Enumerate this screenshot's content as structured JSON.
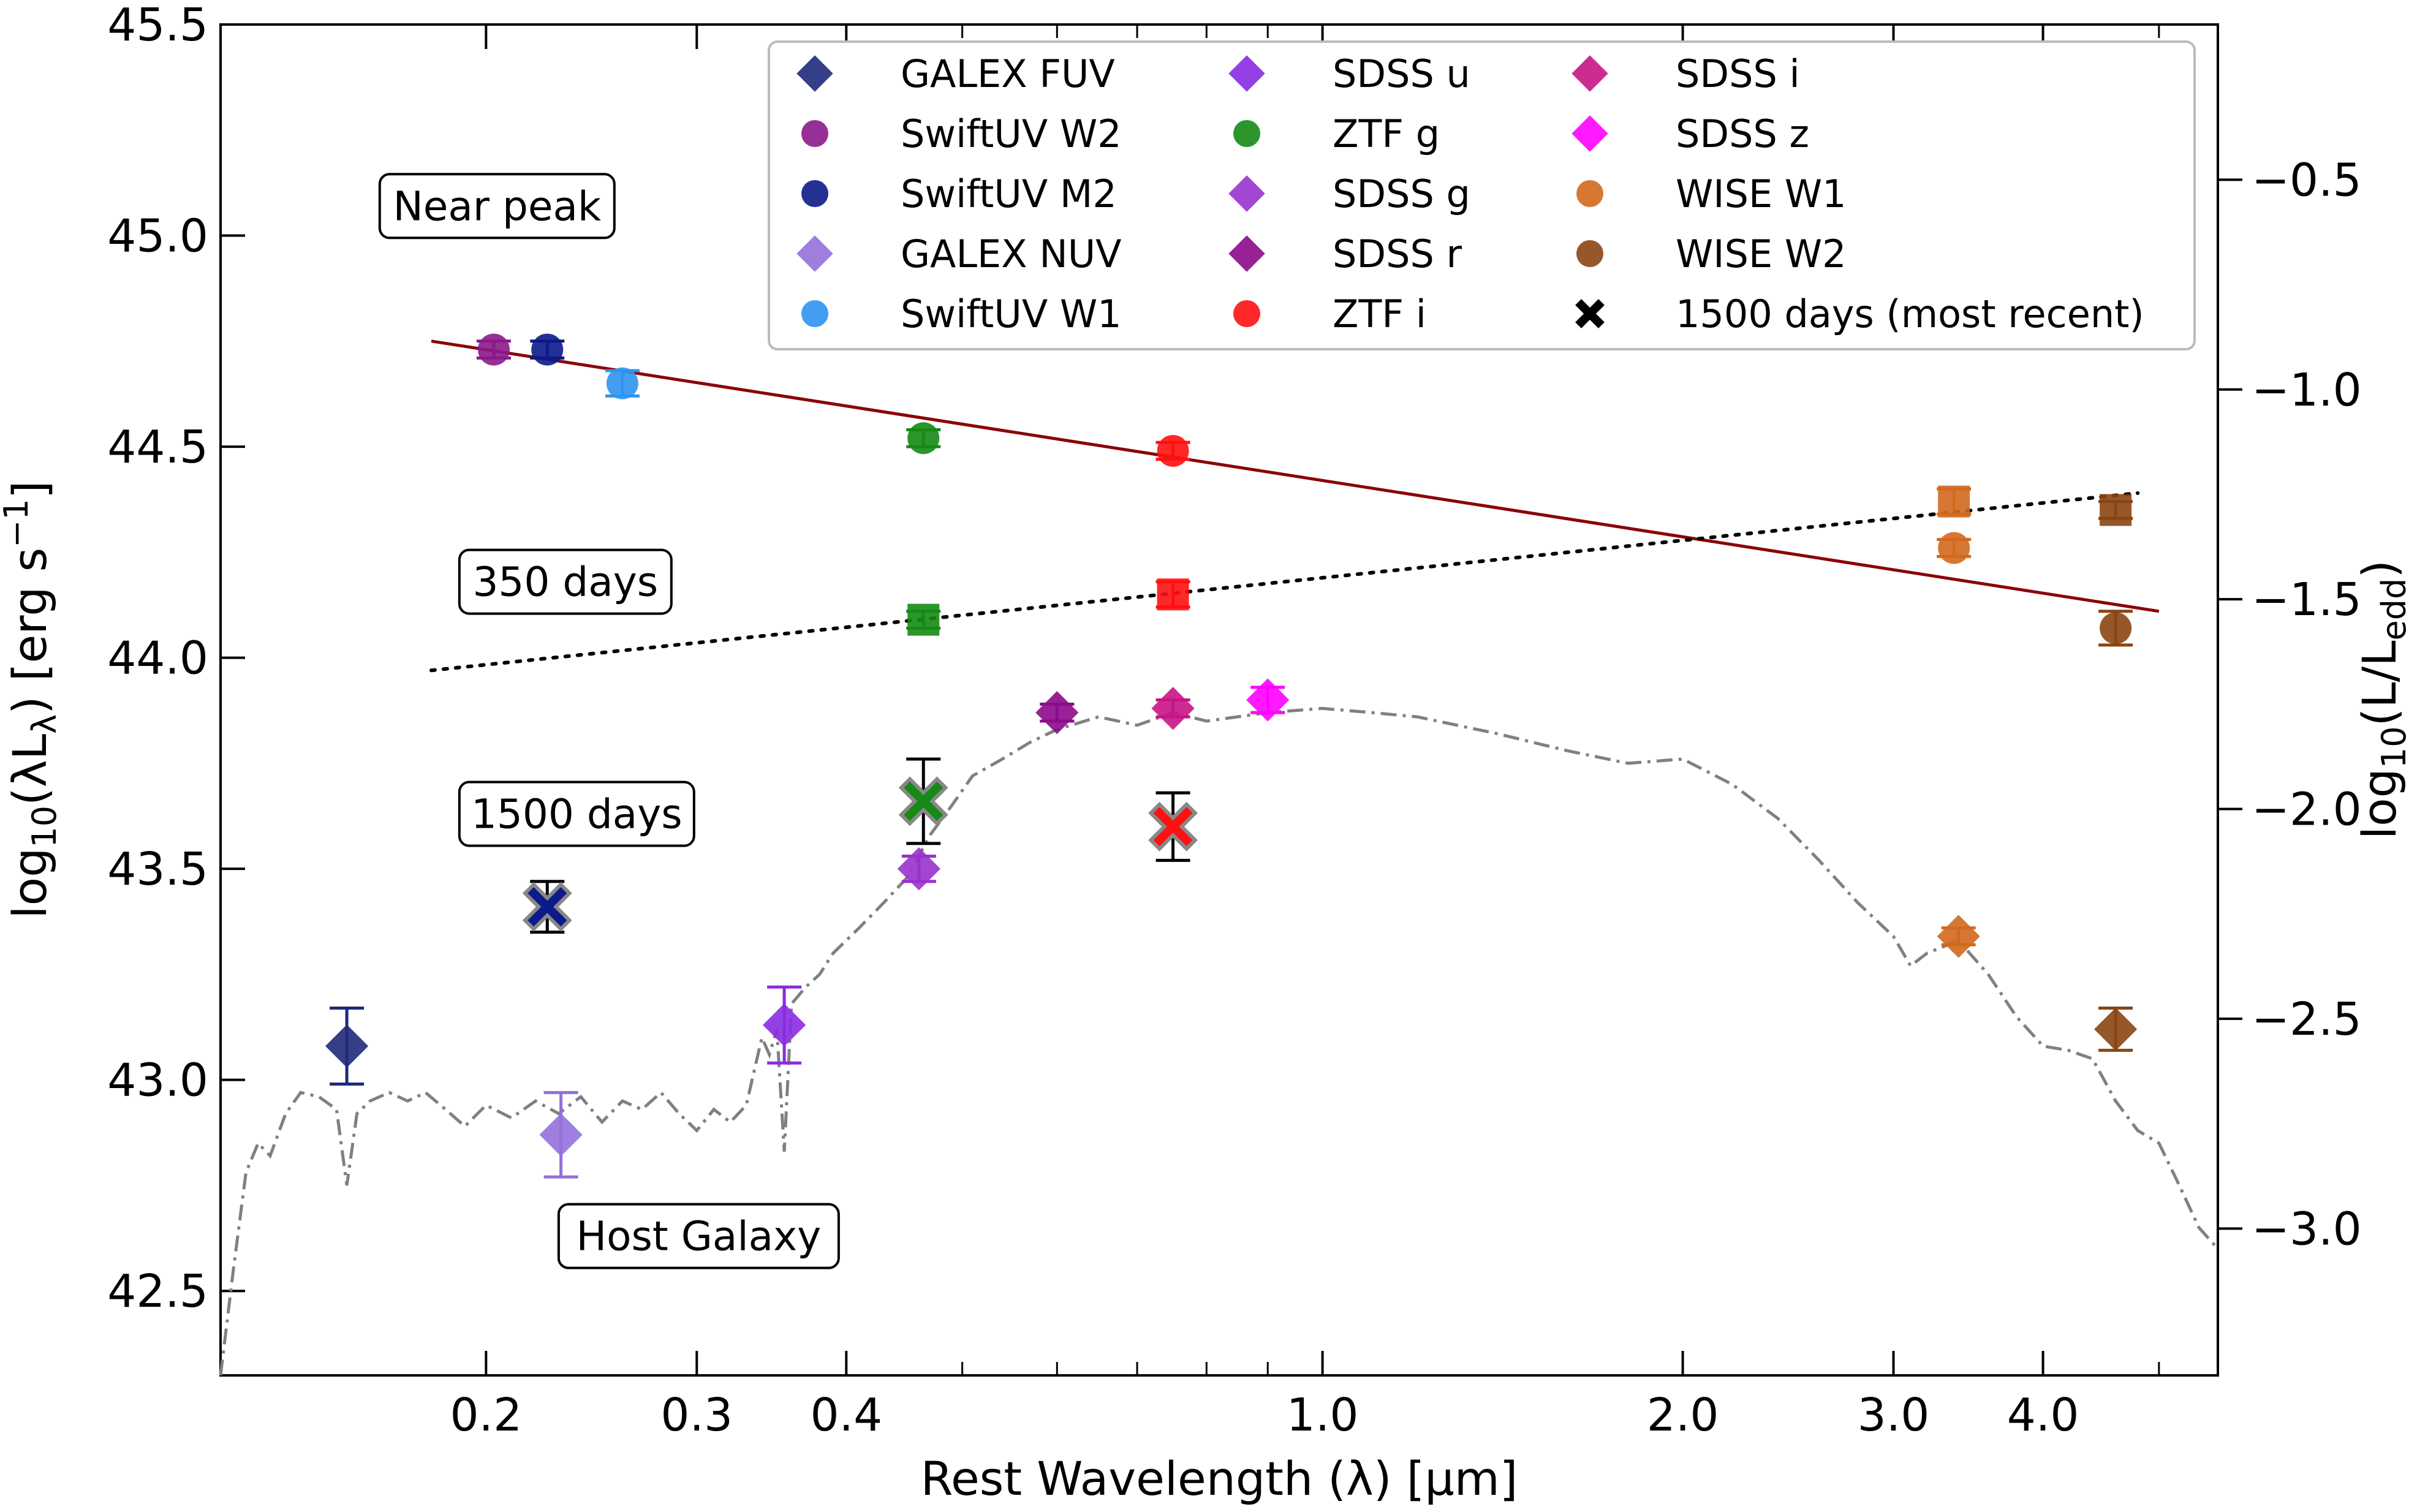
{
  "chart_data": {
    "type": "scatter",
    "xscale": "log",
    "xlabel": "Rest Wavelength (λ) [μm]",
    "ylabel": "log10(λLλ) [erg s^-1]",
    "ylabel_parts": {
      "pre": "log",
      "sub": "10",
      "mid": "(λL",
      "sub2": "λ",
      "post": ") [erg s",
      "sup": "−1",
      "end": "]"
    },
    "y2label_parts": {
      "pre": "log",
      "sub": "10",
      "mid": "(L/L",
      "sub2": "edd",
      "end": ")"
    },
    "xlim": [
      0.12,
      5.6
    ],
    "ylim": [
      42.3,
      45.5
    ],
    "y2lim": [
      -3.35,
      -0.13
    ],
    "x_ticks": [
      {
        "v": 0.2,
        "label": "0.2"
      },
      {
        "v": 0.3,
        "label": "0.3"
      },
      {
        "v": 0.4,
        "label": "0.4"
      },
      {
        "v": 1.0,
        "label": "1.0"
      },
      {
        "v": 2.0,
        "label": "2.0"
      },
      {
        "v": 3.0,
        "label": "3.0"
      },
      {
        "v": 4.0,
        "label": "4.0"
      }
    ],
    "x_minor_ticks": [
      0.5,
      0.6,
      0.7,
      0.8,
      0.9,
      5.0
    ],
    "y_ticks": [
      {
        "v": 42.5,
        "label": "42.5"
      },
      {
        "v": 43.0,
        "label": "43.0"
      },
      {
        "v": 43.5,
        "label": "43.5"
      },
      {
        "v": 44.0,
        "label": "44.0"
      },
      {
        "v": 44.5,
        "label": "44.5"
      },
      {
        "v": 45.0,
        "label": "45.0"
      },
      {
        "v": 45.5,
        "label": "45.5"
      }
    ],
    "y2_ticks": [
      {
        "v": -3.0,
        "label": "−3.0"
      },
      {
        "v": -2.5,
        "label": "−2.5"
      },
      {
        "v": -2.0,
        "label": "−2.0"
      },
      {
        "v": -1.5,
        "label": "−1.5"
      },
      {
        "v": -1.0,
        "label": "−1.0"
      },
      {
        "v": -0.5,
        "label": "−0.5"
      }
    ],
    "colors": {
      "GALEX FUV": "#1f2a7a",
      "SwiftUV W2": "#8b1a8b",
      "SwiftUV M2": "#0d1a8a",
      "GALEX NUV": "#9370db",
      "SwiftUV W1": "#2f94f0",
      "SDSS u": "#8a2be2",
      "ZTF g": "#158a15",
      "SDSS g": "#9932cc",
      "SDSS r": "#8b0a8b",
      "ZTF i": "#ff1111",
      "SDSS i": "#c71585",
      "SDSS z": "#ff00ff",
      "WISE W1": "#d2691e",
      "WISE W2": "#8b4513"
    },
    "legend": {
      "location": "top-right",
      "entries": [
        {
          "label": "GALEX FUV",
          "marker": "diamond",
          "color": "#1f2a7a"
        },
        {
          "label": "SwiftUV W2",
          "marker": "circle",
          "color": "#8b1a8b"
        },
        {
          "label": "SwiftUV M2",
          "marker": "circle",
          "color": "#0d1a8a"
        },
        {
          "label": "GALEX NUV",
          "marker": "diamond",
          "color": "#9370db"
        },
        {
          "label": "SwiftUV W1",
          "marker": "circle",
          "color": "#2f94f0"
        },
        {
          "label": "SDSS u",
          "marker": "diamond",
          "color": "#8a2be2"
        },
        {
          "label": "ZTF g",
          "marker": "circle",
          "color": "#158a15"
        },
        {
          "label": "SDSS g",
          "marker": "diamond",
          "color": "#9932cc"
        },
        {
          "label": "SDSS r",
          "marker": "diamond",
          "color": "#8b0a8b"
        },
        {
          "label": "ZTF i",
          "marker": "circle",
          "color": "#ff1111"
        },
        {
          "label": "SDSS i",
          "marker": "diamond",
          "color": "#c71585"
        },
        {
          "label": "SDSS z",
          "marker": "diamond",
          "color": "#ff00ff"
        },
        {
          "label": "WISE W1",
          "marker": "circle",
          "color": "#d2691e"
        },
        {
          "label": "WISE W2",
          "marker": "circle",
          "color": "#8b4513"
        },
        {
          "label": "1500 days (most recent)",
          "marker": "x",
          "color": "#000000"
        }
      ]
    },
    "annotations": [
      {
        "id": "near-peak",
        "text": "Near peak",
        "x": 0.163,
        "y": 45.07
      },
      {
        "id": "350-days",
        "text": "350 days",
        "x": 0.19,
        "y": 44.18
      },
      {
        "id": "1500-days",
        "text": "1500 days",
        "x": 0.19,
        "y": 43.63
      },
      {
        "id": "host-galaxy",
        "text": "Host Galaxy",
        "x": 0.23,
        "y": 42.63
      }
    ],
    "series": [
      {
        "name": "Near peak",
        "points": [
          {
            "band": "SwiftUV W2",
            "marker": "circle",
            "x": 0.203,
            "y": 44.73,
            "err": 0.02
          },
          {
            "band": "SwiftUV M2",
            "marker": "circle",
            "x": 0.225,
            "y": 44.73,
            "err": 0.02
          },
          {
            "band": "SwiftUV W1",
            "marker": "circle",
            "x": 0.26,
            "y": 44.65,
            "err": 0.03
          },
          {
            "band": "ZTF g",
            "marker": "circle",
            "x": 0.464,
            "y": 44.52,
            "err": 0.02
          },
          {
            "band": "ZTF i",
            "marker": "circle",
            "x": 0.75,
            "y": 44.49,
            "err": 0.02
          },
          {
            "band": "WISE W1",
            "marker": "circle",
            "x": 3.37,
            "y": 44.26,
            "err": 0.02
          },
          {
            "band": "WISE W2",
            "marker": "circle",
            "x": 4.6,
            "y": 44.07,
            "err": 0.04
          }
        ],
        "fit": {
          "x1": 0.18,
          "y1": 44.75,
          "x2": 5.0,
          "y2": 44.11,
          "color": "#8b0000",
          "style": "solid"
        }
      },
      {
        "name": "350 days",
        "points": [
          {
            "band": "ZTF g",
            "marker": "square",
            "x": 0.464,
            "y": 44.09,
            "err": 0.02
          },
          {
            "band": "ZTF i",
            "marker": "square",
            "x": 0.75,
            "y": 44.15,
            "err": 0.03
          },
          {
            "band": "WISE W1",
            "marker": "square",
            "x": 3.37,
            "y": 44.37,
            "err": 0.03
          },
          {
            "band": "WISE W2",
            "marker": "square",
            "x": 4.6,
            "y": 44.35,
            "err": 0.02
          }
        ],
        "fit": {
          "x1": 0.18,
          "y1": 43.97,
          "x2": 4.8,
          "y2": 44.39,
          "color": "#000000",
          "style": "dotted"
        }
      },
      {
        "name": "Host Galaxy",
        "points": [
          {
            "band": "GALEX FUV",
            "marker": "diamond",
            "x": 0.153,
            "y": 43.08,
            "err": 0.09
          },
          {
            "band": "GALEX NUV",
            "marker": "diamond",
            "x": 0.231,
            "y": 42.87,
            "err": 0.1
          },
          {
            "band": "SDSS u",
            "marker": "diamond",
            "x": 0.355,
            "y": 43.13,
            "err": 0.09
          },
          {
            "band": "SDSS g",
            "marker": "diamond",
            "x": 0.46,
            "y": 43.5,
            "err": 0.03
          },
          {
            "band": "SDSS r",
            "marker": "diamond",
            "x": 0.6,
            "y": 43.87,
            "err": 0.02
          },
          {
            "band": "SDSS i",
            "marker": "diamond",
            "x": 0.75,
            "y": 43.88,
            "err": 0.02
          },
          {
            "band": "SDSS z",
            "marker": "diamond",
            "x": 0.9,
            "y": 43.9,
            "err": 0.03
          },
          {
            "band": "WISE W1",
            "marker": "diamond",
            "x": 3.4,
            "y": 43.34,
            "err": 0.02
          },
          {
            "band": "WISE W2",
            "marker": "diamond",
            "x": 4.6,
            "y": 43.12,
            "err": 0.05
          }
        ]
      },
      {
        "name": "1500 days (most recent)",
        "points": [
          {
            "band": "SwiftUV M2",
            "marker": "x",
            "x": 0.225,
            "y": 43.41,
            "err": 0.06
          },
          {
            "band": "ZTF g",
            "marker": "x",
            "x": 0.464,
            "y": 43.66,
            "err": 0.1
          },
          {
            "band": "ZTF i",
            "marker": "x",
            "x": 0.75,
            "y": 43.6,
            "err": 0.08
          }
        ]
      }
    ],
    "host_template": {
      "style": "dash-dot",
      "color": "#808080",
      "points": [
        [
          0.12,
          42.3
        ],
        [
          0.123,
          42.55
        ],
        [
          0.126,
          42.78
        ],
        [
          0.129,
          42.85
        ],
        [
          0.132,
          42.82
        ],
        [
          0.136,
          42.92
        ],
        [
          0.14,
          42.97
        ],
        [
          0.145,
          42.96
        ],
        [
          0.15,
          42.93
        ],
        [
          0.153,
          42.75
        ],
        [
          0.156,
          42.92
        ],
        [
          0.16,
          42.95
        ],
        [
          0.166,
          42.97
        ],
        [
          0.172,
          42.95
        ],
        [
          0.178,
          42.97
        ],
        [
          0.185,
          42.93
        ],
        [
          0.192,
          42.89
        ],
        [
          0.2,
          42.94
        ],
        [
          0.21,
          42.91
        ],
        [
          0.22,
          42.95
        ],
        [
          0.23,
          42.92
        ],
        [
          0.24,
          42.96
        ],
        [
          0.25,
          42.9
        ],
        [
          0.26,
          42.95
        ],
        [
          0.27,
          42.93
        ],
        [
          0.28,
          42.97
        ],
        [
          0.29,
          42.92
        ],
        [
          0.3,
          42.88
        ],
        [
          0.31,
          42.93
        ],
        [
          0.32,
          42.9
        ],
        [
          0.33,
          42.94
        ],
        [
          0.34,
          43.1
        ],
        [
          0.345,
          43.06
        ],
        [
          0.35,
          43.12
        ],
        [
          0.355,
          42.83
        ],
        [
          0.36,
          43.18
        ],
        [
          0.37,
          43.22
        ],
        [
          0.38,
          43.25
        ],
        [
          0.39,
          43.3
        ],
        [
          0.41,
          43.36
        ],
        [
          0.43,
          43.42
        ],
        [
          0.45,
          43.48
        ],
        [
          0.47,
          43.58
        ],
        [
          0.49,
          43.65
        ],
        [
          0.51,
          43.72
        ],
        [
          0.54,
          43.76
        ],
        [
          0.57,
          43.8
        ],
        [
          0.6,
          43.83
        ],
        [
          0.65,
          43.86
        ],
        [
          0.7,
          43.84
        ],
        [
          0.75,
          43.87
        ],
        [
          0.8,
          43.85
        ],
        [
          0.9,
          43.87
        ],
        [
          1.0,
          43.88
        ],
        [
          1.1,
          43.87
        ],
        [
          1.2,
          43.86
        ],
        [
          1.4,
          43.82
        ],
        [
          1.6,
          43.78
        ],
        [
          1.8,
          43.75
        ],
        [
          2.0,
          43.76
        ],
        [
          2.2,
          43.7
        ],
        [
          2.4,
          43.62
        ],
        [
          2.6,
          43.52
        ],
        [
          2.8,
          43.42
        ],
        [
          3.0,
          43.34
        ],
        [
          3.1,
          43.27
        ],
        [
          3.2,
          43.3
        ],
        [
          3.4,
          43.33
        ],
        [
          3.6,
          43.25
        ],
        [
          3.8,
          43.15
        ],
        [
          4.0,
          43.08
        ],
        [
          4.2,
          43.07
        ],
        [
          4.4,
          43.05
        ],
        [
          4.6,
          42.95
        ],
        [
          4.8,
          42.88
        ],
        [
          5.0,
          42.85
        ],
        [
          5.2,
          42.75
        ],
        [
          5.4,
          42.65
        ],
        [
          5.6,
          42.6
        ]
      ]
    }
  }
}
